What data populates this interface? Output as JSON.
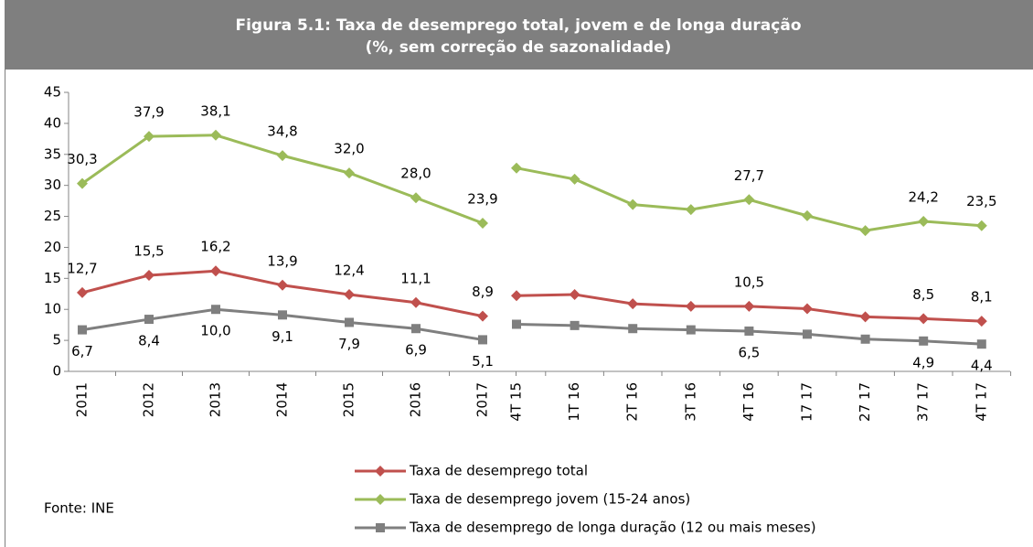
{
  "header": {
    "title": "Figura 5.1: Taxa de desemprego total, jovem e de longa duração",
    "subtitle": "(%, sem correção de sazonalidade)"
  },
  "source": "Fonte: INE",
  "chart_data": [
    {
      "type": "line",
      "categories": [
        "2011",
        "2012",
        "2013",
        "2014",
        "2015",
        "2016",
        "2017"
      ],
      "ylim": [
        0,
        45
      ],
      "yticks": [
        0,
        5,
        10,
        15,
        20,
        25,
        30,
        35,
        40,
        45
      ],
      "series": [
        {
          "name": "Taxa de desemprego total",
          "color": "#c0504d",
          "marker": "diamond",
          "values": [
            12.7,
            15.5,
            16.2,
            13.9,
            12.4,
            11.1,
            8.9
          ],
          "value_labels": [
            "12,7",
            "15,5",
            "16,2",
            "13,9",
            "12,4",
            "11,1",
            "8,9"
          ]
        },
        {
          "name": "Taxa de desemprego jovem (15-24 anos)",
          "color": "#9bbb59",
          "marker": "diamond",
          "values": [
            30.3,
            37.9,
            38.1,
            34.8,
            32.0,
            28.0,
            23.9
          ],
          "value_labels": [
            "30,3",
            "37,9",
            "38,1",
            "34,8",
            "32,0",
            "28,0",
            "23,9"
          ]
        },
        {
          "name": "Taxa de desemprego de longa duração (12 ou mais meses)",
          "color": "#7f7f7f",
          "marker": "square",
          "values": [
            6.7,
            8.4,
            10.0,
            9.1,
            7.9,
            6.9,
            5.1
          ],
          "value_labels": [
            "6,7",
            "8,4",
            "10,0",
            "9,1",
            "7,9",
            "6,9",
            "5,1"
          ]
        }
      ]
    },
    {
      "type": "line",
      "categories": [
        "4T 15",
        "1T 16",
        "2T 16",
        "3T 16",
        "4T 16",
        "17 17",
        "27 17",
        "37 17",
        "4T 17"
      ],
      "ylim": [
        0,
        45
      ],
      "series": [
        {
          "color": "#c0504d",
          "marker": "diamond",
          "values": [
            12.2,
            12.4,
            10.9,
            10.5,
            10.5,
            10.1,
            8.8,
            8.5,
            8.1
          ],
          "value_labels": [
            null,
            null,
            null,
            null,
            "10,5",
            null,
            null,
            "8,5",
            "8,1"
          ]
        },
        {
          "color": "#9bbb59",
          "marker": "diamond",
          "values": [
            32.8,
            31.0,
            26.9,
            26.1,
            27.7,
            25.1,
            22.7,
            24.2,
            23.5
          ],
          "value_labels": [
            null,
            null,
            null,
            null,
            "27,7",
            null,
            null,
            "24,2",
            "23,5"
          ]
        },
        {
          "color": "#7f7f7f",
          "marker": "square",
          "values": [
            7.6,
            7.4,
            6.9,
            6.7,
            6.5,
            6.0,
            5.2,
            4.9,
            4.4
          ],
          "value_labels": [
            null,
            null,
            null,
            null,
            "6,5",
            null,
            null,
            "4,9",
            "4,4"
          ]
        }
      ]
    }
  ]
}
